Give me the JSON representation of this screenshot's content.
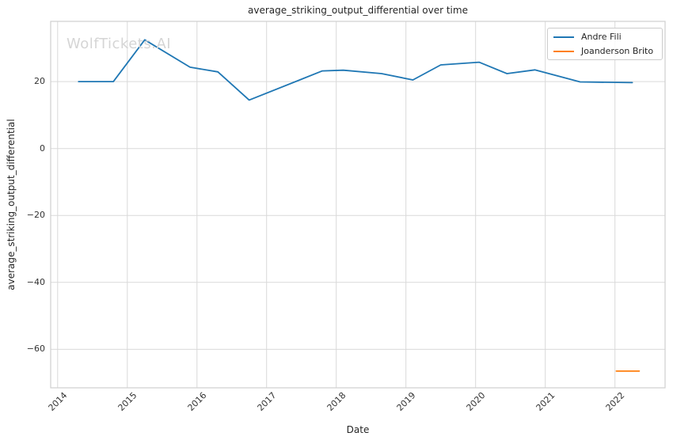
{
  "figure": {
    "title": "average_striking_output_differential over time",
    "watermark": "WolfTickets.AI",
    "xlabel": "Date",
    "ylabel": "average_striking_output_differential"
  },
  "colors": {
    "grid": "#d9d9d9",
    "frame": "#cfcfcf",
    "title_text": "#262626",
    "tick_text": "#333333",
    "watermark": "#d5d5d5",
    "series_blue": "#1f77b4",
    "series_orange": "#ff7f0e"
  },
  "chart_data": {
    "type": "line",
    "title": "average_striking_output_differential over time",
    "xlabel": "Date",
    "ylabel": "average_striking_output_differential",
    "xlim": [
      2013.9,
      2022.72
    ],
    "ylim": [
      -71.5,
      38
    ],
    "grid": true,
    "legend_position": "upper right",
    "x_ticks": [
      {
        "value": 2014,
        "label": "2014"
      },
      {
        "value": 2015,
        "label": "2015"
      },
      {
        "value": 2016,
        "label": "2016"
      },
      {
        "value": 2017,
        "label": "2017"
      },
      {
        "value": 2018,
        "label": "2018"
      },
      {
        "value": 2019,
        "label": "2019"
      },
      {
        "value": 2020,
        "label": "2020"
      },
      {
        "value": 2021,
        "label": "2021"
      },
      {
        "value": 2022,
        "label": "2022"
      }
    ],
    "y_ticks": [
      {
        "value": 20,
        "label": "20"
      },
      {
        "value": 0,
        "label": "0"
      },
      {
        "value": -20,
        "label": "−20"
      },
      {
        "value": -40,
        "label": "−40"
      },
      {
        "value": -60,
        "label": "−60"
      }
    ],
    "series": [
      {
        "name": "Andre Fili",
        "color": "#1f77b4",
        "points": [
          [
            2014.3,
            20.0
          ],
          [
            2014.8,
            20.0
          ],
          [
            2015.25,
            32.5
          ],
          [
            2015.9,
            24.3
          ],
          [
            2016.3,
            22.9
          ],
          [
            2016.75,
            14.5
          ],
          [
            2017.8,
            23.2
          ],
          [
            2018.1,
            23.4
          ],
          [
            2018.65,
            22.4
          ],
          [
            2019.1,
            20.5
          ],
          [
            2019.5,
            25.0
          ],
          [
            2020.05,
            25.8
          ],
          [
            2020.45,
            22.4
          ],
          [
            2020.85,
            23.5
          ],
          [
            2021.5,
            19.9
          ],
          [
            2022.25,
            19.7
          ]
        ]
      },
      {
        "name": "Joanderson Brito",
        "color": "#ff7f0e",
        "points": [
          [
            2022.02,
            -66.5
          ],
          [
            2022.35,
            -66.5
          ]
        ]
      }
    ]
  }
}
